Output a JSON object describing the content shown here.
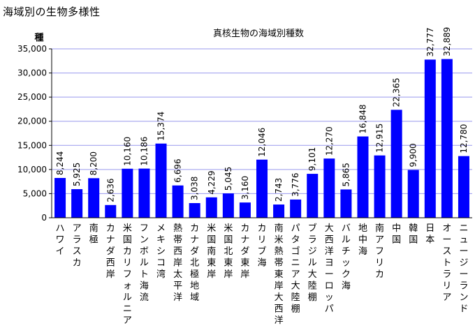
{
  "page": {
    "title": "海域別の生物多様性"
  },
  "chart_data": {
    "type": "bar",
    "title": "真核生物の海域別種数",
    "ylabel": "種",
    "xlabel": "",
    "ylim": [
      0,
      35000
    ],
    "yticks": [
      "0",
      "5,000",
      "10,000",
      "15,000",
      "20,000",
      "25,000",
      "30,000",
      "35,000"
    ],
    "ytick_values": [
      0,
      5000,
      10000,
      15000,
      20000,
      25000,
      30000,
      35000
    ],
    "grid": true,
    "bar_color": "#0000ff",
    "grid_color": "#9999ee",
    "categories": [
      "ハワイ",
      "アラスカ",
      "南極",
      "カナダ西岸",
      "米国カリフォルニア",
      "フンボルト海流",
      "メキシコ湾",
      "熱帯西岸太平洋",
      "カナダ北極地域",
      "米国南東岸",
      "米国北東岸",
      "カナダ東岸",
      "カリブ海",
      "南米熱帯東岸大西洋",
      "パタゴニア大陸棚",
      "ブラジル大陸棚",
      "大西洋ヨーロッパ",
      "バルチック海",
      "地中海",
      "南アフリカ",
      "中国",
      "韓国",
      "日本",
      "オーストラリア",
      "ニュージーランド"
    ],
    "values": [
      8244,
      5925,
      8200,
      2636,
      10160,
      10186,
      15374,
      6696,
      3038,
      4229,
      5045,
      3160,
      12046,
      2743,
      3776,
      9101,
      12270,
      5865,
      16848,
      12915,
      22365,
      9900,
      32777,
      32889,
      12780
    ],
    "data_labels": [
      "8,244",
      "5,925",
      "8,200",
      "2,636",
      "10,160",
      "10,186",
      "15,374",
      "6,696",
      "3,038",
      "4,229",
      "5,045",
      "3,160",
      "12,046",
      "2,743",
      "3,776",
      "9,101",
      "12,270",
      "5,865",
      "16,848",
      "12,915",
      "22,365",
      "9,900",
      "32,777",
      "32,889",
      "12,780"
    ]
  }
}
